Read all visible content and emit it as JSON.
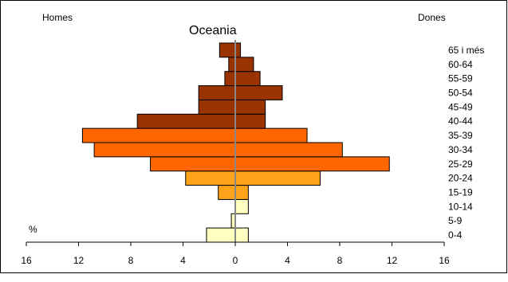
{
  "chart_data": {
    "type": "bar",
    "title": "Oceania",
    "left_label": "Homes",
    "right_label": "Dones",
    "unit_label": "%",
    "categories": [
      "0-4",
      "5-9",
      "10-14",
      "15-19",
      "20-24",
      "25-29",
      "30-34",
      "35-39",
      "40-44",
      "45-49",
      "50-54",
      "55-59",
      "60-64",
      "65 i més"
    ],
    "series": [
      {
        "name": "Homes",
        "values": [
          2.2,
          0.3,
          0.0,
          1.3,
          3.8,
          6.5,
          10.8,
          11.7,
          7.5,
          2.8,
          2.8,
          0.8,
          0.5,
          1.2
        ]
      },
      {
        "name": "Dones",
        "values": [
          1.0,
          0.0,
          1.0,
          1.0,
          6.5,
          11.8,
          8.2,
          5.5,
          2.3,
          2.3,
          3.6,
          1.9,
          1.4,
          0.4
        ]
      }
    ],
    "xlim": [
      -16,
      16
    ],
    "x_ticks": [
      -16,
      -12,
      -8,
      -4,
      0,
      4,
      8,
      12,
      16
    ],
    "x_tick_labels": [
      "16",
      "12",
      "8",
      "4",
      "0",
      "4",
      "8",
      "12",
      "16"
    ],
    "colors": {
      "young": "#FFFFC0",
      "adult": "#FFA31A",
      "prime": "#FF6600",
      "elder": "#993300",
      "center_line": "#888888",
      "outline": "#000000"
    },
    "color_groups": [
      "young",
      "young",
      "young",
      "adult",
      "adult",
      "prime",
      "prime",
      "prime",
      "elder",
      "elder",
      "elder",
      "elder",
      "elder",
      "elder"
    ]
  }
}
